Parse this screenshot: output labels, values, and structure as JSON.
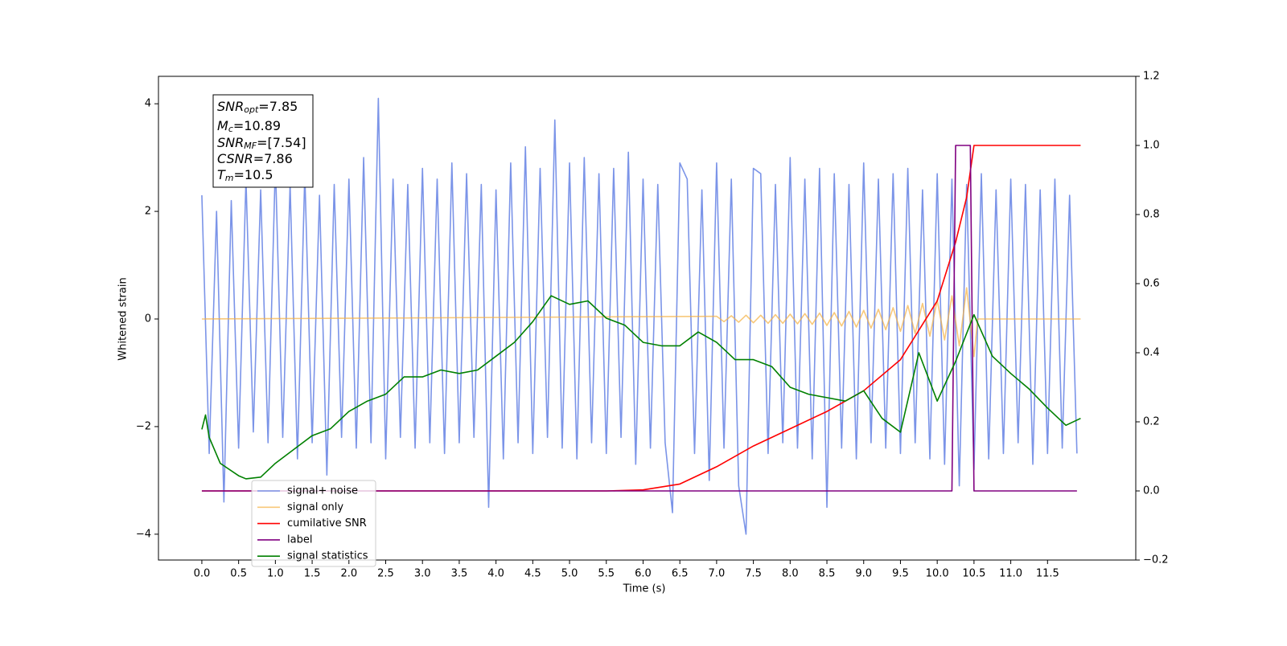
{
  "chart_data": {
    "type": "line",
    "xlabel": "Time (s)",
    "ylabel": "Whitened strain",
    "xlim": [
      -0.59,
      12.7
    ],
    "ylim": [
      -4.48,
      4.51
    ],
    "y2lim": [
      -0.2,
      1.2
    ],
    "xticks": [
      {
        "value": 0,
        "label": "0.0"
      },
      0.5,
      {
        "value": 1,
        "label": "1.0"
      },
      1.5,
      {
        "value": 2,
        "label": "2.0"
      },
      2.5,
      {
        "value": 3,
        "label": "3.0"
      },
      3.5,
      {
        "value": 4,
        "label": "4.0"
      },
      4.5,
      {
        "value": 5,
        "label": "5.0"
      },
      5.5,
      {
        "value": 6,
        "label": "6.0"
      },
      6.5,
      {
        "value": 7,
        "label": "7.0"
      },
      7.5,
      {
        "value": 8,
        "label": "8.0"
      },
      8.5,
      {
        "value": 9,
        "label": "9.0"
      },
      9.5,
      {
        "value": 10,
        "label": "10.0"
      },
      10.5,
      {
        "value": 11,
        "label": "11.0"
      },
      11.5
    ],
    "yticks": [
      {
        "value": -4,
        "label": "−4"
      },
      {
        "value": -2,
        "label": "−2"
      },
      0,
      2,
      4
    ],
    "y2ticks": [
      {
        "value": -0.2,
        "label": "−0.2"
      },
      {
        "value": 0,
        "label": "0.0"
      },
      0.2,
      0.4,
      0.6,
      0.8,
      {
        "value": 1,
        "label": "1.0"
      },
      1.2
    ],
    "legend": "lower left",
    "annotation": [
      {
        "symbol": "SNR",
        "subscript": "opt",
        "text": "=7.85"
      },
      {
        "symbol": "M",
        "subscript": "c",
        "text": "=10.89"
      },
      {
        "symbol": "SNR",
        "subscript": "MF",
        "text": "=[7.54]"
      },
      {
        "symbol": "CSNR",
        "text": "=7.86"
      },
      {
        "symbol": "T",
        "subscript": "m",
        "text": "=10.5"
      }
    ],
    "series": [
      {
        "name": "signal+ noise",
        "color": "#7b94e8",
        "x": [
          0,
          0.1,
          0.2,
          0.3,
          0.4,
          0.5,
          0.6,
          0.7,
          0.8,
          0.9,
          1,
          1.1,
          1.2,
          1.3,
          1.4,
          1.5,
          1.6,
          1.7,
          1.8,
          1.9,
          2,
          2.1,
          2.2,
          2.3,
          2.4,
          2.5,
          2.6,
          2.7,
          2.8,
          2.9,
          3,
          3.1,
          3.2,
          3.3,
          3.4,
          3.5,
          3.6,
          3.7,
          3.8,
          3.9,
          4,
          4.1,
          4.2,
          4.3,
          4.4,
          4.5,
          4.6,
          4.7,
          4.8,
          4.9,
          5,
          5.1,
          5.2,
          5.3,
          5.4,
          5.5,
          5.6,
          5.7,
          5.8,
          5.9,
          6,
          6.1,
          6.2,
          6.3,
          6.4,
          6.5,
          6.6,
          6.7,
          6.8,
          6.9,
          7,
          7.1,
          7.2,
          7.3,
          7.4,
          7.5,
          7.6,
          7.7,
          7.8,
          7.9,
          8,
          8.1,
          8.2,
          8.3,
          8.4,
          8.5,
          8.6,
          8.7,
          8.8,
          8.9,
          9,
          9.1,
          9.2,
          9.3,
          9.4,
          9.5,
          9.6,
          9.7,
          9.8,
          9.9,
          10,
          10.1,
          10.2,
          10.3,
          10.4,
          10.5,
          10.6,
          10.7,
          10.8,
          10.9,
          11,
          11.1,
          11.2,
          11.3,
          11.4,
          11.5,
          11.6,
          11.7,
          11.8,
          11.9
        ],
        "values": [
          2.3,
          -2.5,
          2.0,
          -3.4,
          2.2,
          -2.4,
          2.6,
          -2.1,
          2.4,
          -2.3,
          2.9,
          -2.2,
          2.5,
          -2.6,
          2.7,
          -2.3,
          2.3,
          -2.9,
          2.5,
          -2.2,
          2.6,
          -2.4,
          3.0,
          -2.3,
          4.1,
          -2.6,
          2.6,
          -2.2,
          2.5,
          -2.4,
          2.8,
          -2.3,
          2.6,
          -2.5,
          2.9,
          -2.3,
          2.7,
          -2.2,
          2.5,
          -3.5,
          2.4,
          -2.6,
          2.9,
          -2.3,
          3.2,
          -2.5,
          2.8,
          -2.2,
          3.7,
          -2.4,
          2.9,
          -2.6,
          3.0,
          -2.3,
          2.7,
          -2.5,
          2.8,
          -2.2,
          3.1,
          -2.7,
          2.6,
          -2.4,
          2.5,
          -2.3,
          -3.6,
          2.9,
          2.6,
          -2.5,
          2.4,
          -3.0,
          2.9,
          -2.4,
          2.6,
          -3.1,
          -4.0,
          2.8,
          2.7,
          -2.5,
          2.5,
          -2.3,
          3.0,
          -2.4,
          2.6,
          -2.6,
          2.8,
          -3.5,
          2.7,
          -2.4,
          2.5,
          -2.6,
          2.9,
          -2.3,
          2.6,
          -2.4,
          2.7,
          -2.5,
          2.8,
          -2.3,
          2.4,
          -2.6,
          2.7,
          -2.7,
          2.6,
          -3.1,
          2.5,
          -2.8,
          2.7,
          -2.6,
          2.4,
          -2.5,
          2.6,
          -2.3,
          2.5,
          -2.7,
          2.4,
          -2.5,
          2.6,
          -2.4,
          2.3,
          -2.5
        ]
      },
      {
        "name": "signal only",
        "color": "#f5b041",
        "x": [
          0,
          7,
          7.1,
          7.2,
          7.3,
          7.4,
          7.5,
          7.6,
          7.7,
          7.8,
          7.9,
          8,
          8.1,
          8.2,
          8.3,
          8.4,
          8.5,
          8.6,
          8.7,
          8.8,
          8.9,
          9,
          9.1,
          9.2,
          9.3,
          9.4,
          9.5,
          9.6,
          9.7,
          9.8,
          9.9,
          10,
          10.1,
          10.2,
          10.3,
          10.4,
          10.5,
          10.55,
          11.95
        ],
        "values": [
          0,
          0.05,
          -0.05,
          0.06,
          -0.06,
          0.07,
          -0.07,
          0.07,
          -0.08,
          0.08,
          -0.08,
          0.09,
          -0.09,
          0.1,
          -0.1,
          0.11,
          -0.12,
          0.12,
          -0.13,
          0.14,
          -0.15,
          0.16,
          -0.17,
          0.18,
          -0.2,
          0.21,
          -0.23,
          0.25,
          -0.27,
          0.29,
          -0.32,
          0.35,
          -0.39,
          0.43,
          -0.5,
          0.58,
          -0.7,
          0,
          0
        ]
      },
      {
        "name": "cumilative SNR",
        "color": "#ff0000",
        "axis": "y2",
        "x": [
          0,
          5.5,
          6,
          6.5,
          7,
          7.5,
          8,
          8.5,
          9,
          9.5,
          10,
          10.25,
          10.4,
          10.5,
          11.95
        ],
        "values": [
          0,
          0,
          0.003,
          0.02,
          0.07,
          0.13,
          0.18,
          0.23,
          0.29,
          0.38,
          0.55,
          0.72,
          0.85,
          1,
          1
        ]
      },
      {
        "name": "label",
        "color": "#800080",
        "axis": "y2",
        "x": [
          0,
          10.2,
          10.25,
          10.45,
          10.5,
          11.9
        ],
        "values": [
          0,
          0,
          1,
          1,
          0,
          0
        ]
      },
      {
        "name": "signal statistics",
        "color": "#008000",
        "axis": "y2",
        "x": [
          0,
          0.05,
          0.1,
          0.25,
          0.5,
          0.6,
          0.8,
          1,
          1.25,
          1.5,
          1.75,
          2,
          2.25,
          2.5,
          2.75,
          3,
          3.25,
          3.5,
          3.75,
          4,
          4.25,
          4.5,
          4.75,
          5,
          5.25,
          5.5,
          5.75,
          6,
          6.25,
          6.5,
          6.75,
          7,
          7.25,
          7.5,
          7.75,
          8,
          8.25,
          8.5,
          8.75,
          9,
          9.25,
          9.5,
          9.75,
          10,
          10.25,
          10.5,
          10.75,
          11,
          11.25,
          11.5,
          11.75,
          11.95
        ],
        "values": [
          0.178,
          0.22,
          0.155,
          0.08,
          0.044,
          0.035,
          0.04,
          0.08,
          0.12,
          0.16,
          0.18,
          0.23,
          0.26,
          0.28,
          0.33,
          0.33,
          0.35,
          0.34,
          0.35,
          0.39,
          0.43,
          0.49,
          0.565,
          0.54,
          0.55,
          0.5,
          0.48,
          0.43,
          0.42,
          0.42,
          0.46,
          0.43,
          0.38,
          0.38,
          0.36,
          0.3,
          0.28,
          0.27,
          0.26,
          0.29,
          0.21,
          0.17,
          0.4,
          0.26,
          0.375,
          0.51,
          0.39,
          0.34,
          0.295,
          0.24,
          0.19,
          0.21
        ]
      }
    ]
  }
}
